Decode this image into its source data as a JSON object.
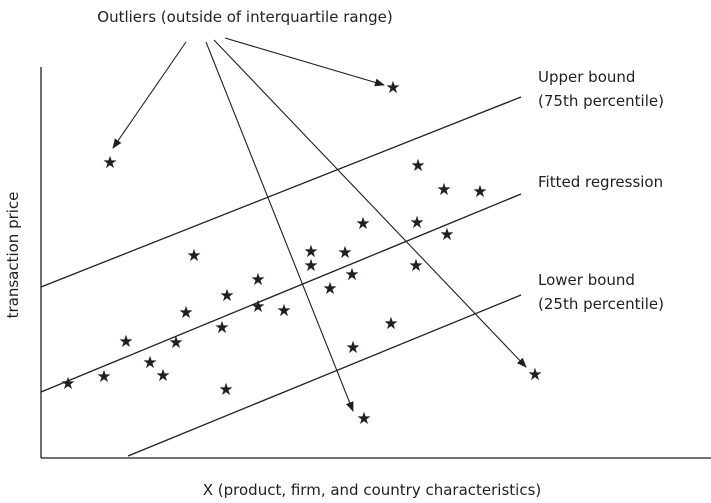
{
  "chart_data": {
    "type": "scatter",
    "title": "Outliers (outside of interquartile range)",
    "xlabel": "X (product, firm, and country characteristics)",
    "ylabel": "transaction price",
    "lines": [
      {
        "name": "Upper bound (75th percentile)",
        "label_lines": [
          "Upper bound",
          "(75th percentile)"
        ]
      },
      {
        "name": "Fitted regression",
        "label_lines": [
          "Fitted regression"
        ]
      },
      {
        "name": "Lower bound (25th percentile)",
        "label_lines": [
          "Lower bound",
          "(25th percentile)"
        ]
      }
    ],
    "marker": "★"
  }
}
